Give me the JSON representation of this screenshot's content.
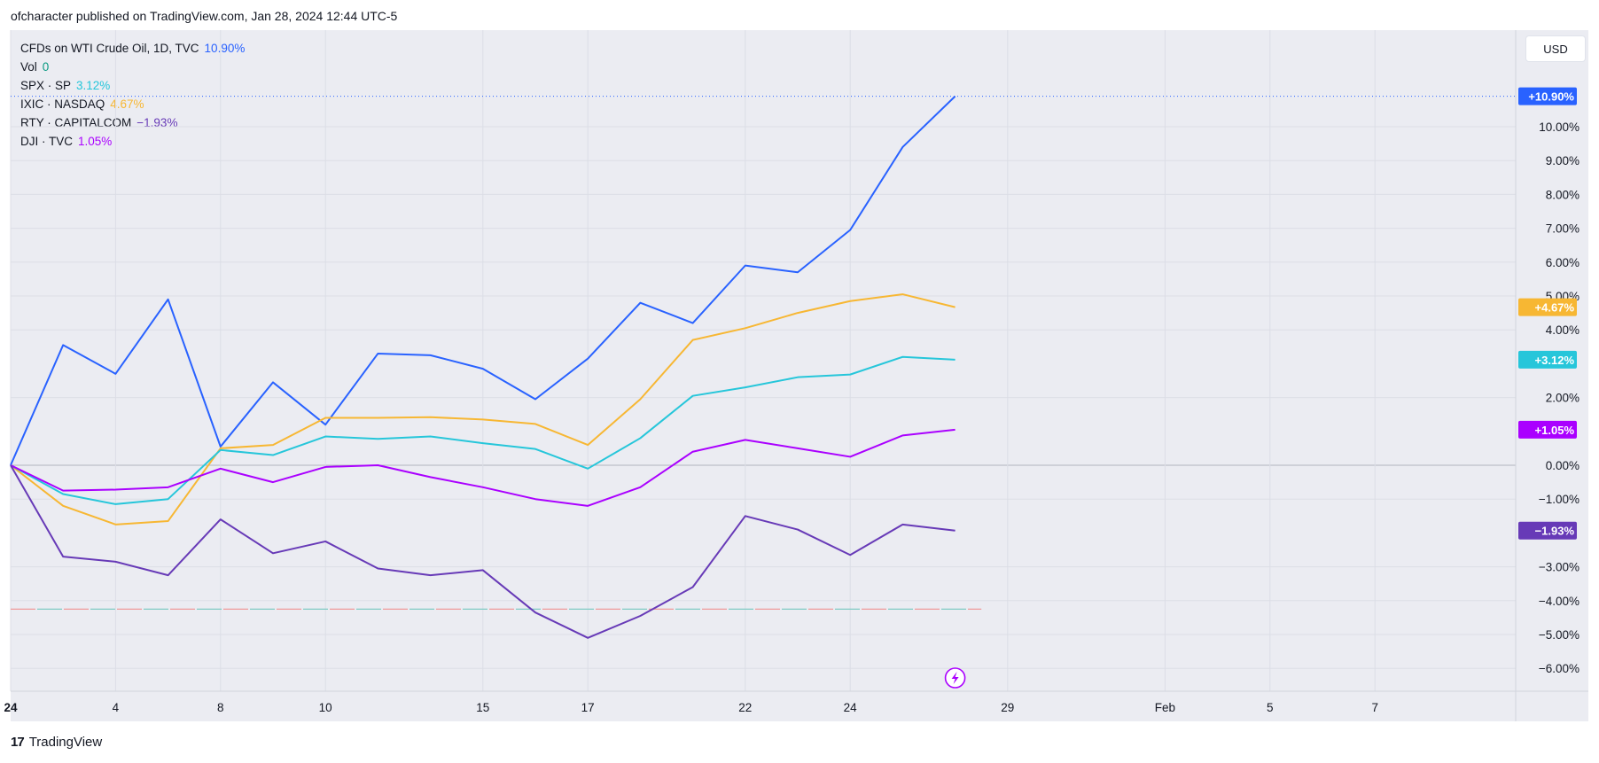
{
  "header": {
    "published": "ofcharacter published on TradingView.com, Jan 28, 2024 12:44 UTC-5"
  },
  "currency": "USD",
  "footer": {
    "logo_mark": "17",
    "logo_text": "TradingView"
  },
  "legend": [
    {
      "label": "CFDs on WTI Crude Oil, 1D, TVC",
      "value": "10.90%",
      "color": "#2962ff"
    },
    {
      "label": "Vol",
      "value": "0",
      "color": "#089981"
    },
    {
      "label": "SPX · SP",
      "value": "3.12%",
      "color": "#26c6da"
    },
    {
      "label": "IXIC · NASDAQ",
      "value": "4.67%",
      "color": "#f7b733"
    },
    {
      "label": "RTY · CAPITALCOM",
      "value": "−1.93%",
      "color": "#673ab7"
    },
    {
      "label": "DJI · TVC",
      "value": "1.05%",
      "color": "#aa00ff"
    }
  ],
  "chart_data": {
    "type": "line",
    "y_ticks": [
      "10.00%",
      "9.00%",
      "8.00%",
      "7.00%",
      "6.00%",
      "5.00%",
      "4.00%",
      "2.00%",
      "0.00%",
      "−1.00%",
      "−3.00%",
      "−4.00%",
      "−5.00%",
      "−6.00%"
    ],
    "y_tick_values": [
      10,
      9,
      8,
      7,
      6,
      5,
      4,
      2,
      0,
      -1,
      -3,
      -4,
      -5,
      -6
    ],
    "ylim": [
      -6.6,
      11.5
    ],
    "x_ticks": [
      {
        "label": "24",
        "x": 0,
        "bold": true
      },
      {
        "label": "4",
        "x": 2
      },
      {
        "label": "8",
        "x": 4
      },
      {
        "label": "10",
        "x": 6
      },
      {
        "label": "15",
        "x": 9
      },
      {
        "label": "17",
        "x": 11
      },
      {
        "label": "22",
        "x": 14
      },
      {
        "label": "24",
        "x": 16
      },
      {
        "label": "29",
        "x": 19
      },
      {
        "label": "Feb",
        "x": 22
      },
      {
        "label": "5",
        "x": 24
      },
      {
        "label": "7",
        "x": 26
      }
    ],
    "xlim": [
      0,
      28.5
    ],
    "x": [
      0,
      1,
      2,
      3,
      4,
      5,
      6,
      7,
      8,
      9,
      10,
      11,
      12,
      13,
      14,
      15,
      16,
      17,
      18
    ],
    "series": [
      {
        "name": "CFDs on WTI Crude Oil",
        "color": "#2962ff",
        "values": [
          0,
          3.55,
          2.7,
          4.9,
          0.55,
          2.45,
          1.2,
          3.3,
          3.25,
          2.85,
          1.95,
          3.15,
          4.8,
          4.2,
          5.9,
          5.7,
          6.95,
          9.4,
          10.9
        ],
        "badge": "+10.90%"
      },
      {
        "name": "IXIC",
        "color": "#f7b733",
        "values": [
          0,
          -1.2,
          -1.75,
          -1.65,
          0.5,
          0.6,
          1.4,
          1.4,
          1.42,
          1.35,
          1.22,
          0.6,
          1.95,
          3.7,
          4.05,
          4.5,
          4.85,
          5.05,
          4.67
        ],
        "badge": "+4.67%"
      },
      {
        "name": "SPX",
        "color": "#26c6da",
        "values": [
          0,
          -0.85,
          -1.15,
          -1.0,
          0.45,
          0.3,
          0.85,
          0.78,
          0.85,
          0.65,
          0.48,
          -0.1,
          0.8,
          2.05,
          2.3,
          2.6,
          2.68,
          3.2,
          3.12
        ],
        "badge": "+3.12%"
      },
      {
        "name": "DJI",
        "color": "#aa00ff",
        "values": [
          0,
          -0.75,
          -0.72,
          -0.65,
          -0.1,
          -0.5,
          -0.05,
          0.0,
          -0.35,
          -0.65,
          -1.0,
          -1.2,
          -0.65,
          0.4,
          0.75,
          0.5,
          0.25,
          0.88,
          1.05
        ],
        "badge": "+1.05%"
      },
      {
        "name": "RTY",
        "color": "#673ab7",
        "values": [
          0,
          -2.7,
          -2.85,
          -3.25,
          -1.6,
          -2.6,
          -2.25,
          -3.05,
          -3.25,
          -3.1,
          -4.35,
          -5.1,
          -4.45,
          -3.6,
          -1.5,
          -1.9,
          -2.65,
          -1.75,
          -1.93
        ],
        "badge": "−1.93%"
      }
    ],
    "volume_baseline": -4.25
  }
}
